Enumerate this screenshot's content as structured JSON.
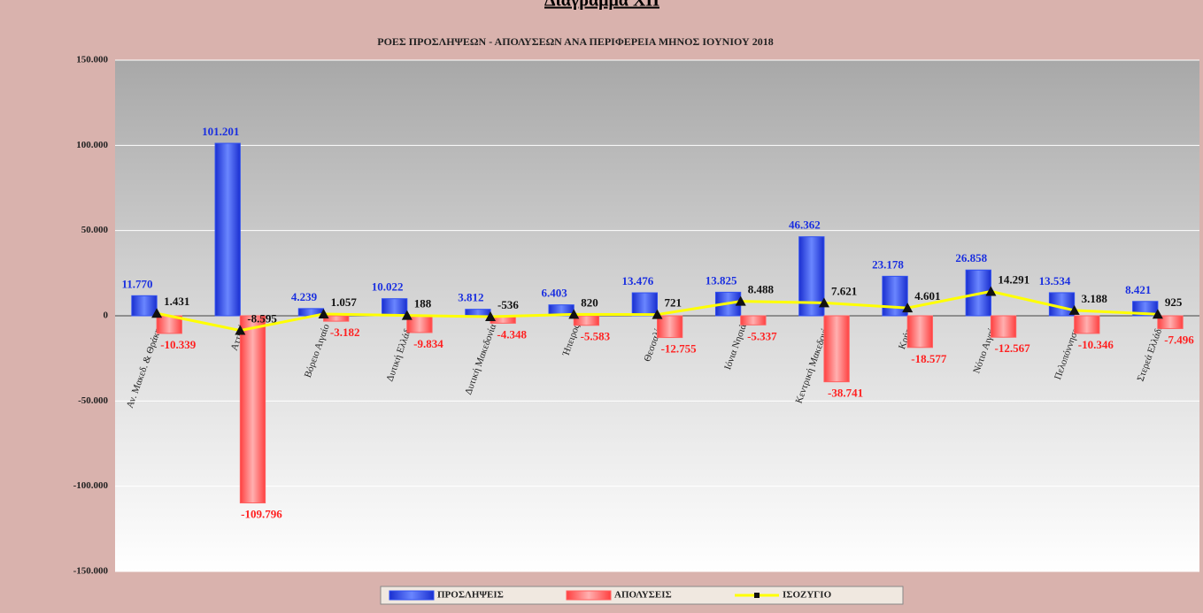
{
  "header": "Διάγραμμα XII",
  "chart_data": {
    "type": "bar",
    "title": "ΡΟΕΣ ΠΡΟΣΛΗΨΕΩΝ - ΑΠΟΛΥΣΕΩΝ ΑΝΑ ΠΕΡΙΦΕΡΕΙΑ ΜΗΝΟΣ ΙΟΥΝΙΟΥ 2018",
    "categories": [
      "Αν. Μακεδ. & Θράκης",
      "Αττική",
      "Βόρειο Αιγαίο",
      "Δυτική Ελλάδα",
      "Δυτική Μακεδονία",
      "Ήπειρος",
      "Θεσσαλία",
      "Ιόνια Νησιά",
      "Κεντρική Μακεδονία",
      "Κρήτη",
      "Νότιο Αιγαίο",
      "Πελοπόννησος",
      "Στερεά Ελλάδα"
    ],
    "series": [
      {
        "name": "ΠΡΟΣΛΗΨΕΙΣ",
        "type": "bar",
        "color": "#3050f0",
        "values": [
          11770,
          101201,
          4239,
          10022,
          3812,
          6403,
          13476,
          13825,
          46362,
          23178,
          26858,
          13534,
          8421
        ],
        "value_labels": [
          "11.770",
          "101.201",
          "4.239",
          "10.022",
          "3.812",
          "6.403",
          "13.476",
          "13.825",
          "46.362",
          "23.178",
          "26.858",
          "13.534",
          "8.421"
        ]
      },
      {
        "name": "ΑΠΟΛΥΣΕΙΣ",
        "type": "bar",
        "color": "#ff6060",
        "values": [
          -10339,
          -109796,
          -3182,
          -9834,
          -4348,
          -5583,
          -12755,
          -5337,
          -38741,
          -18577,
          -12567,
          -10346,
          -7496
        ],
        "value_labels": [
          "-10.339",
          "-109.796",
          "-3.182",
          "-9.834",
          "-4.348",
          "-5.583",
          "-12.755",
          "-5.337",
          "-38.741",
          "-18.577",
          "-12.567",
          "-10.346",
          "-7.496"
        ]
      },
      {
        "name": "ΙΣΟΖΥΓΙΟ",
        "type": "line",
        "color": "#ffff00",
        "values": [
          1431,
          -8595,
          1057,
          188,
          -536,
          820,
          721,
          8488,
          7621,
          4601,
          14291,
          3188,
          925
        ],
        "value_labels": [
          "1.431",
          "-8.595",
          "1.057",
          "188",
          "-536",
          "820",
          "721",
          "8.488",
          "7.621",
          "4.601",
          "14.291",
          "3.188",
          "925"
        ]
      }
    ],
    "ylim": [
      -150000,
      150000
    ],
    "yticks": [
      {
        "value": -150000,
        "label": "-150.000"
      },
      {
        "value": -100000,
        "label": "-100.000"
      },
      {
        "value": -50000,
        "label": "-50.000"
      },
      0,
      {
        "value": 50000,
        "label": "50.000"
      },
      {
        "value": 100000,
        "label": "100.000"
      },
      {
        "value": 150000,
        "label": "150.000"
      }
    ],
    "grid": true,
    "legend": "bottom"
  }
}
